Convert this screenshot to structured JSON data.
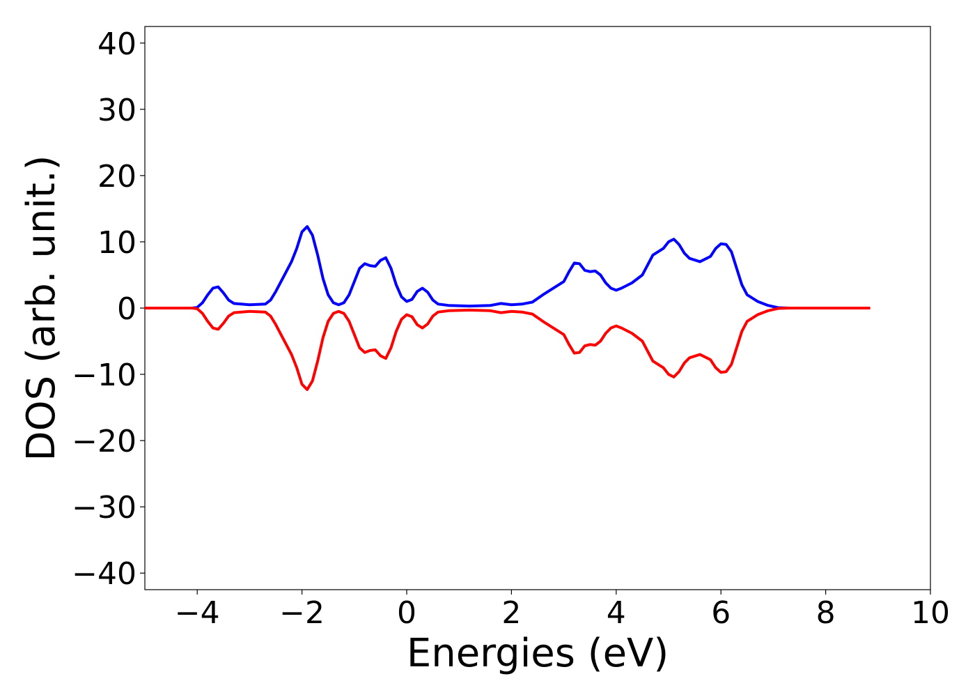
{
  "chart_data": {
    "type": "line",
    "x_label": "Energies (eV)",
    "y_label": "DOS (arb. unit.)",
    "x": [
      -5,
      -4.1,
      -4.0,
      -3.9,
      -3.8,
      -3.7,
      -3.6,
      -3.5,
      -3.4,
      -3.3,
      -3.0,
      -2.7,
      -2.6,
      -2.5,
      -2.4,
      -2.2,
      -2.1,
      -2.0,
      -1.9,
      -1.8,
      -1.7,
      -1.6,
      -1.5,
      -1.4,
      -1.3,
      -1.2,
      -1.1,
      -1.0,
      -0.9,
      -0.8,
      -0.7,
      -0.6,
      -0.5,
      -0.4,
      -0.3,
      -0.2,
      -0.1,
      0,
      0.1,
      0.2,
      0.3,
      0.4,
      0.5,
      0.6,
      0.8,
      1.2,
      1.6,
      1.8,
      2.0,
      2.2,
      2.4,
      2.6,
      2.8,
      3.0,
      3.1,
      3.2,
      3.3,
      3.4,
      3.5,
      3.6,
      3.7,
      3.8,
      3.9,
      4.0,
      4.1,
      4.3,
      4.5,
      4.6,
      4.7,
      4.9,
      5.0,
      5.1,
      5.2,
      5.3,
      5.4,
      5.6,
      5.8,
      5.9,
      6.0,
      6.1,
      6.2,
      6.3,
      6.4,
      6.5,
      6.7,
      6.9,
      7.1,
      7.3,
      8.85
    ],
    "series": [
      {
        "color": "#0000ff",
        "values": [
          0,
          0,
          0.1,
          0.8,
          2,
          3,
          3.2,
          2.3,
          1.2,
          0.7,
          0.5,
          0.6,
          1.2,
          2.5,
          4,
          7,
          9,
          11.5,
          12.3,
          11,
          8,
          4.5,
          2,
          0.8,
          0.5,
          0.8,
          2,
          4,
          6,
          6.7,
          6.4,
          6.3,
          7.2,
          7.6,
          6,
          3.5,
          1.7,
          1,
          1.3,
          2.5,
          3,
          2.4,
          1.2,
          0.6,
          0.4,
          0.3,
          0.4,
          0.7,
          0.5,
          0.6,
          0.9,
          2,
          3,
          4,
          5.5,
          6.8,
          6.7,
          5.7,
          5.5,
          5.6,
          5,
          3.8,
          3,
          2.7,
          3,
          3.8,
          5,
          6.5,
          8,
          9,
          10,
          10.4,
          9.6,
          8.3,
          7.5,
          7,
          7.8,
          9,
          9.7,
          9.6,
          8.5,
          6,
          3.5,
          2,
          1,
          0.4,
          0.05,
          0,
          0
        ]
      },
      {
        "color": "#ff0000",
        "values": [
          0,
          0,
          -0.1,
          -0.8,
          -2,
          -3,
          -3.2,
          -2.3,
          -1.2,
          -0.7,
          -0.5,
          -0.6,
          -1.2,
          -2.5,
          -4,
          -7,
          -9,
          -11.5,
          -12.3,
          -11,
          -8,
          -4.5,
          -2,
          -0.8,
          -0.5,
          -0.8,
          -2,
          -4,
          -6,
          -6.7,
          -6.4,
          -6.3,
          -7.2,
          -7.6,
          -6,
          -3.5,
          -1.7,
          -1,
          -1.3,
          -2.5,
          -3,
          -2.4,
          -1.2,
          -0.6,
          -0.4,
          -0.3,
          -0.4,
          -0.7,
          -0.5,
          -0.6,
          -0.9,
          -2,
          -3,
          -4,
          -5.5,
          -6.8,
          -6.7,
          -5.7,
          -5.5,
          -5.6,
          -5,
          -3.8,
          -3,
          -2.7,
          -3,
          -3.8,
          -5,
          -6.5,
          -8,
          -9,
          -10,
          -10.4,
          -9.6,
          -8.3,
          -7.5,
          -7,
          -7.8,
          -9,
          -9.7,
          -9.6,
          -8.5,
          -6,
          -3.5,
          -2,
          -1,
          -0.4,
          -0.05,
          0,
          0
        ]
      }
    ],
    "xlim": [
      -5,
      10
    ],
    "ylim": [
      -42.5,
      42.5
    ],
    "xticks": [
      {
        "value": -4,
        "label": "−4"
      },
      {
        "value": -2,
        "label": "−2"
      },
      0,
      2,
      4,
      6,
      8,
      10
    ],
    "yticks": [
      {
        "value": -40,
        "label": "−40"
      },
      {
        "value": -30,
        "label": "−30"
      },
      {
        "value": -20,
        "label": "−20"
      },
      {
        "value": -10,
        "label": "−10"
      },
      0,
      10,
      20,
      30,
      40
    ],
    "grid": false
  }
}
